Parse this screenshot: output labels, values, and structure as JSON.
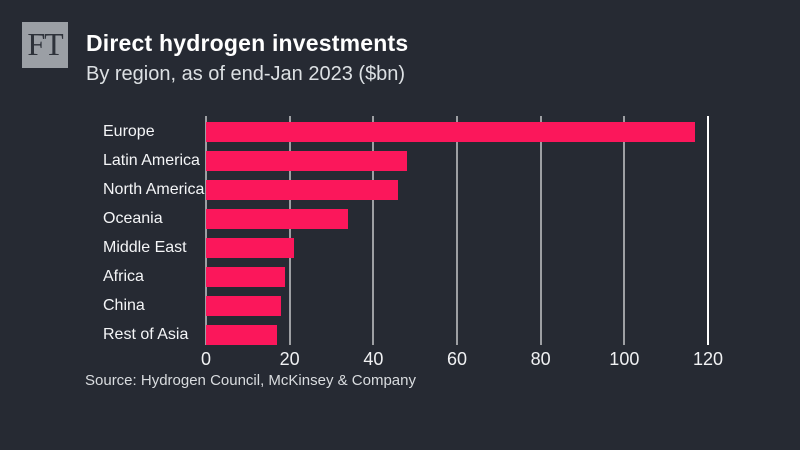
{
  "header": {
    "logo_text": "FT",
    "title": "Direct hydrogen investments",
    "subtitle": "By region, as of end-Jan 2023 ($bn)"
  },
  "chart_data": {
    "type": "bar",
    "orientation": "horizontal",
    "title": "Direct hydrogen investments",
    "subtitle": "By region, as of end-Jan 2023 ($bn)",
    "categories": [
      "Europe",
      "Latin America",
      "North America",
      "Oceania",
      "Middle East",
      "Africa",
      "China",
      "Rest of Asia"
    ],
    "values": [
      117,
      48,
      46,
      34,
      21,
      19,
      18,
      17
    ],
    "xlabel": "",
    "ylabel": "",
    "xlim": [
      0,
      120
    ],
    "xticks": [
      0,
      20,
      40,
      60,
      80,
      100,
      120
    ],
    "grid": true,
    "legend": "none",
    "bar_color": "#fb175b",
    "background_color": "#262a33",
    "gridline_color": "rgba(255,255,255,0.55)",
    "edge_gridline_color": "#ffffff",
    "label_color": "#f4f5f7",
    "tick_label_color": "#f0f1f3"
  },
  "footer": {
    "source": "Source: Hydrogen Council, McKinsey & Company"
  }
}
